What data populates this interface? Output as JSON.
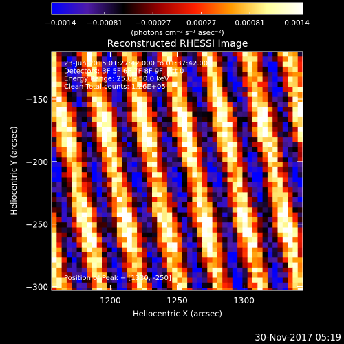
{
  "chart_data": {
    "type": "heatmap",
    "title": "Reconstructed RHESSI Image",
    "xlabel": "Heliocentric X (arcsec)",
    "ylabel": "Heliocentric Y (arcsec)",
    "xlim": [
      1156,
      1344
    ],
    "ylim": [
      -303,
      -112
    ],
    "x_ticks": [
      {
        "value": 1200,
        "label": "1200"
      },
      {
        "value": 1250,
        "label": "1250"
      },
      {
        "value": 1300,
        "label": "1300"
      }
    ],
    "y_ticks": [
      {
        "value": -150,
        "label": "−150"
      },
      {
        "value": -200,
        "label": "−200"
      },
      {
        "value": -250,
        "label": "−250"
      },
      {
        "value": -300,
        "label": "−300"
      }
    ],
    "colorbar": {
      "range": [
        -0.0014,
        0.0014
      ],
      "colors": [
        "#0000ff",
        "#4e1aa8",
        "#000000",
        "#9a0000",
        "#ff2000",
        "#ff9900",
        "#ffff99",
        "#ffffff"
      ],
      "ticks": [
        {
          "value": -0.0014,
          "label": "−0.0014"
        },
        {
          "value": -0.00081,
          "label": "−0.00081"
        },
        {
          "value": -0.00027,
          "label": "−0.00027"
        },
        {
          "value": 0.00027,
          "label": "0.00027"
        },
        {
          "value": 0.00081,
          "label": "0.00081"
        },
        {
          "value": 0.0014,
          "label": "0.0014"
        }
      ],
      "unit_label": "(photons cm⁻² s⁻¹ asec⁻²)"
    },
    "annotations": [
      "23-Jun-2015 01:27:42.000 to 01:37:42.000",
      "Detectors: 3F 5F 6F 7F 8F 9F, Att 0",
      "Energy Range: 25.0 - 50.0 keV",
      "Clean     Total counts: 1.26E+05"
    ],
    "peak_label": "Position of Peak = [1330, -250]",
    "footer_date": "30-Nov-2017 05:19"
  }
}
